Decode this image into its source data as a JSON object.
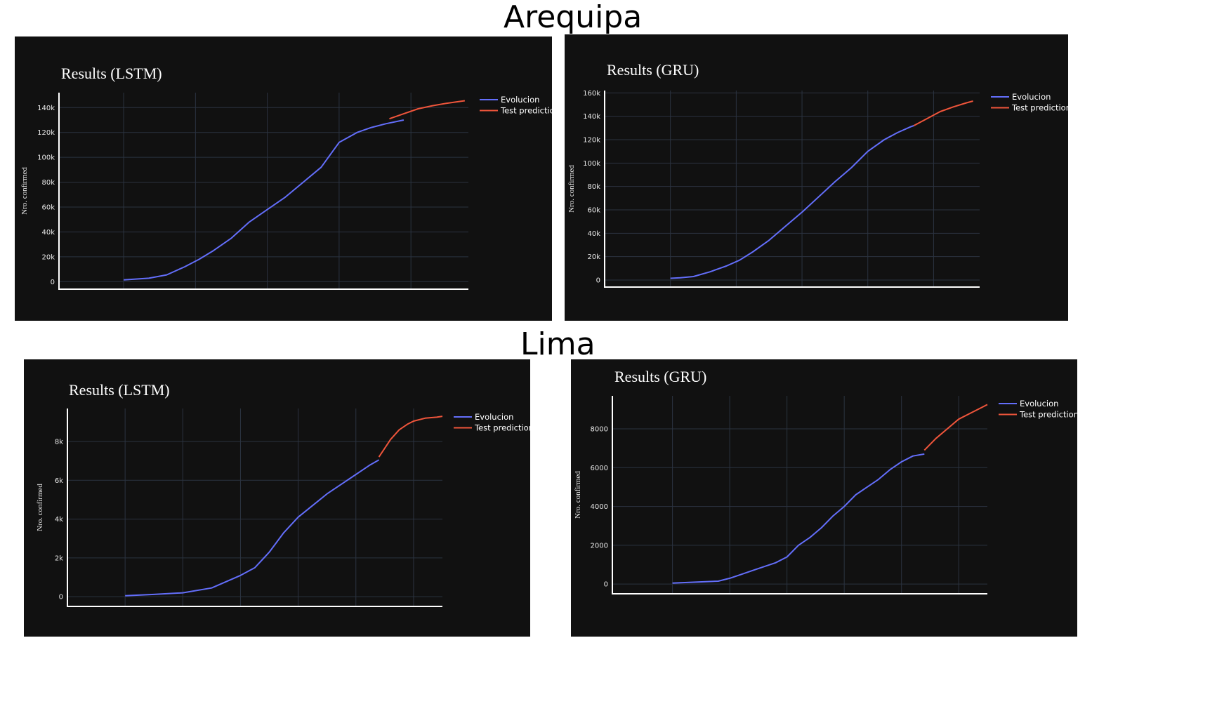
{
  "sections": [
    {
      "name": "Arequipa"
    },
    {
      "name": "Lima"
    }
  ],
  "colors": {
    "panel_bg": "#111111",
    "evolucion": "#636efa",
    "test_prediction": "#ef553b",
    "grid": "#2b3340"
  },
  "chart_data": [
    {
      "type": "line",
      "title": "Results (LSTM)",
      "ylabel": "Nro. confirmed",
      "xlim": [
        -18,
        96
      ],
      "ylim": [
        -6000,
        152000
      ],
      "yticks": [
        0,
        20000,
        40000,
        60000,
        80000,
        100000,
        120000,
        140000
      ],
      "ytick_labels": [
        "0",
        "20k",
        "40k",
        "60k",
        "80k",
        "100k",
        "120k",
        "140k"
      ],
      "xgrid": [
        0,
        20,
        40,
        60,
        80
      ],
      "legend": "top-right",
      "series": [
        {
          "name": "Evolucion",
          "color": "#636efa",
          "x": [
            0,
            3,
            7,
            12,
            17,
            21,
            25,
            30,
            35,
            40,
            45,
            50,
            55,
            60,
            65,
            69,
            73,
            78
          ],
          "y": [
            1500,
            2000,
            2800,
            5500,
            12000,
            18000,
            25000,
            35000,
            48000,
            58000,
            68000,
            80000,
            92000,
            112000,
            120000,
            124000,
            127000,
            130000
          ]
        },
        {
          "name": "Test prediction",
          "color": "#ef553b",
          "x": [
            74,
            78,
            82,
            86,
            90,
            95
          ],
          "y": [
            131000,
            135000,
            139000,
            141500,
            143500,
            145500
          ]
        }
      ]
    },
    {
      "type": "line",
      "title": "Results (GRU)",
      "ylabel": "Nro. confirmed",
      "xlim": [
        -20,
        94
      ],
      "ylim": [
        -6000,
        162000
      ],
      "yticks": [
        0,
        20000,
        40000,
        60000,
        80000,
        100000,
        120000,
        140000,
        160000
      ],
      "ytick_labels": [
        "0",
        "20k",
        "40k",
        "60k",
        "80k",
        "100k",
        "120k",
        "140k",
        "160k"
      ],
      "xgrid": [
        0,
        20,
        40,
        60,
        80
      ],
      "legend": "top-right",
      "series": [
        {
          "name": "Evolucion",
          "color": "#636efa",
          "x": [
            0,
            3,
            7,
            12,
            17,
            21,
            25,
            30,
            35,
            40,
            45,
            50,
            55,
            60,
            65,
            69,
            73,
            74
          ],
          "y": [
            1500,
            2000,
            3000,
            7000,
            12000,
            17000,
            24000,
            34000,
            46000,
            58000,
            71000,
            84000,
            96000,
            110000,
            120000,
            126000,
            131000,
            132000
          ]
        },
        {
          "name": "Test prediction",
          "color": "#ef553b",
          "x": [
            74,
            78,
            82,
            86,
            90,
            92
          ],
          "y": [
            132000,
            138000,
            144000,
            148000,
            151500,
            153000
          ]
        }
      ]
    },
    {
      "type": "line",
      "title": "Results (LSTM)",
      "ylabel": "Nro. confirmed",
      "xlim": [
        -20,
        110
      ],
      "ylim": [
        -500,
        9700
      ],
      "yticks": [
        0,
        2000,
        4000,
        6000,
        8000
      ],
      "ytick_labels": [
        "0",
        "2k",
        "4k",
        "6k",
        "8k"
      ],
      "xgrid": [
        0,
        20,
        40,
        60,
        80,
        100
      ],
      "legend": "top-right",
      "series": [
        {
          "name": "Evolucion",
          "color": "#636efa",
          "x": [
            0,
            10,
            20,
            30,
            40,
            45,
            50,
            55,
            60,
            65,
            70,
            75,
            80,
            85,
            88
          ],
          "y": [
            50,
            120,
            200,
            450,
            1100,
            1500,
            2300,
            3300,
            4100,
            4700,
            5300,
            5800,
            6300,
            6800,
            7050
          ]
        },
        {
          "name": "Test prediction",
          "color": "#ef553b",
          "x": [
            88,
            92,
            95,
            98,
            100,
            104,
            108,
            110
          ],
          "y": [
            7200,
            8100,
            8600,
            8900,
            9050,
            9200,
            9250,
            9300
          ]
        }
      ]
    },
    {
      "type": "line",
      "title": "Results (GRU)",
      "ylabel": "Nro. confirmed",
      "xlim": [
        -21,
        110
      ],
      "ylim": [
        -500,
        9700
      ],
      "yticks": [
        0,
        2000,
        4000,
        6000,
        8000
      ],
      "ytick_labels": [
        "0",
        "2000",
        "4000",
        "6000",
        "8000"
      ],
      "xgrid": [
        0,
        20,
        40,
        60,
        80,
        100
      ],
      "legend": "top-right",
      "series": [
        {
          "name": "Evolucion",
          "color": "#636efa",
          "x": [
            0,
            8,
            16,
            20,
            24,
            28,
            32,
            36,
            40,
            44,
            48,
            52,
            56,
            60,
            64,
            68,
            72,
            76,
            80,
            84,
            88
          ],
          "y": [
            50,
            100,
            150,
            300,
            500,
            700,
            900,
            1100,
            1400,
            2000,
            2400,
            2900,
            3500,
            4000,
            4600,
            5000,
            5400,
            5900,
            6300,
            6600,
            6700
          ]
        },
        {
          "name": "Test prediction",
          "color": "#ef553b",
          "x": [
            88,
            92,
            96,
            100,
            104,
            108,
            110
          ],
          "y": [
            6900,
            7500,
            8000,
            8500,
            8800,
            9100,
            9250
          ]
        }
      ]
    }
  ]
}
